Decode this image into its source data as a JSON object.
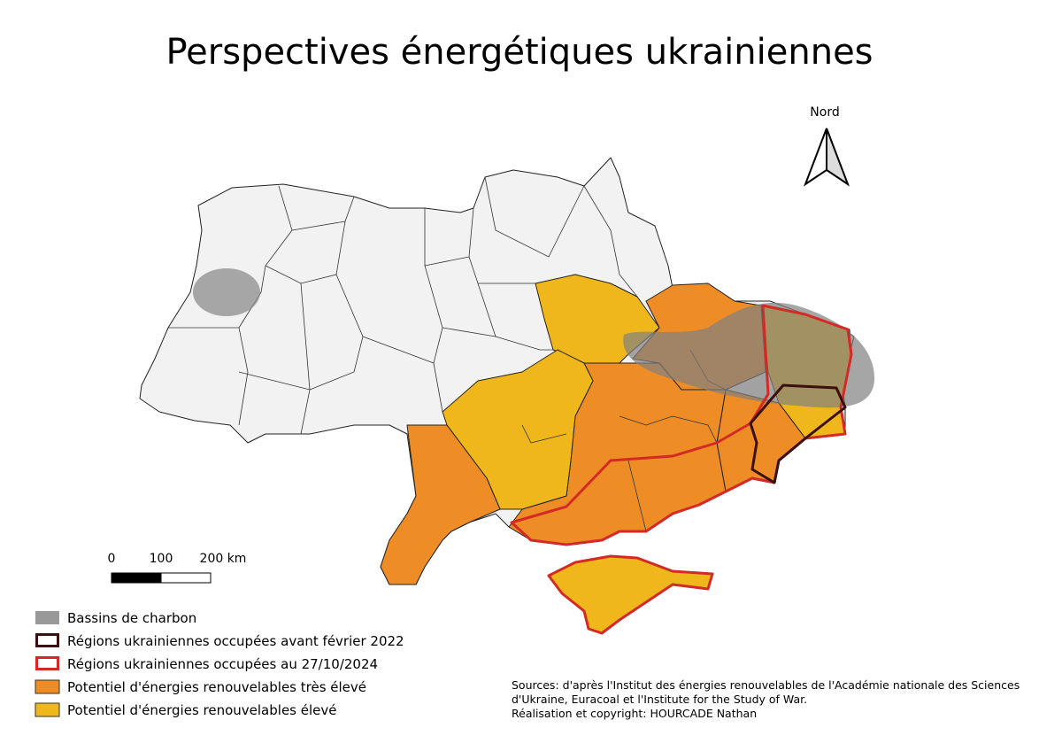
{
  "title": "Perspectives énergétiques ukrainiennes",
  "north_arrow": {
    "label": "Nord"
  },
  "scale_bar": {
    "labels": [
      "0",
      "100",
      "200 km"
    ]
  },
  "legend": {
    "items": [
      {
        "label": "Bassins de charbon"
      },
      {
        "label": "Régions ukrainiennes occupées avant février 2022"
      },
      {
        "label": "Régions ukrainiennes occupées au 27/10/2024"
      },
      {
        "label": "Potentiel d'énergies renouvelables très élevé"
      },
      {
        "label": "Potentiel d'énergies renouvelables élevé"
      }
    ]
  },
  "sources": {
    "lines": [
      "Sources: d'après l'Institut des énergies renouvelables de l'Académie nationale des Sciences",
      "d'Ukraine, Euracoal et l'Institute for the Study of War.",
      "Réalisation et copyright: HOURCADE Nathan"
    ]
  }
}
